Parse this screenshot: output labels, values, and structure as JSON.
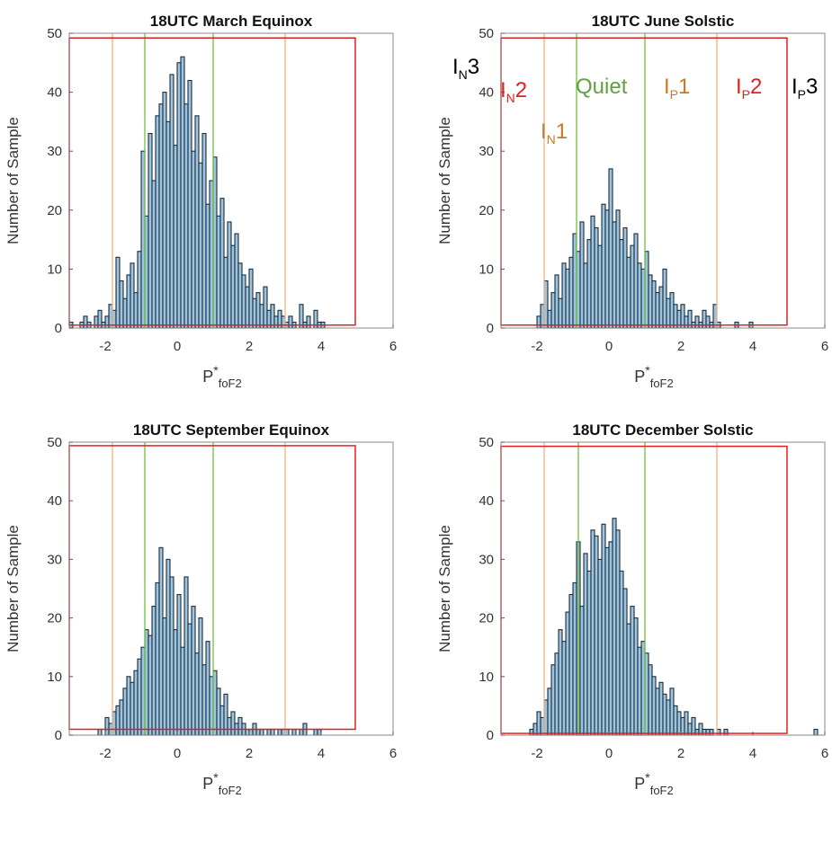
{
  "chart_data": [
    {
      "type": "histogram",
      "title": "18UTC March Equinox",
      "ylabel": "Number of Sample",
      "xlabel": {
        "text": "P",
        "sup": "*",
        "sub": "foF2"
      },
      "bins": [
        -3.0,
        -2.9,
        -2.8,
        -2.7,
        -2.6,
        -2.5,
        -2.4,
        -2.3,
        -2.2,
        -2.1,
        -2.0,
        -1.9,
        -1.8,
        -1.7,
        -1.6,
        -1.5,
        -1.4,
        -1.3,
        -1.2,
        -1.1,
        -1.0,
        -0.9,
        -0.8,
        -0.7,
        -0.6,
        -0.5,
        -0.4,
        -0.3,
        -0.2,
        -0.1,
        0.0,
        0.1,
        0.2,
        0.3,
        0.4,
        0.5,
        0.6,
        0.7,
        0.8,
        0.9,
        1.0,
        1.1,
        1.2,
        1.3,
        1.4,
        1.5,
        1.6,
        1.7,
        1.8,
        1.9,
        2.0,
        2.1,
        2.2,
        2.3,
        2.4,
        2.5,
        2.6,
        2.7,
        2.8,
        2.9,
        3.0,
        3.1,
        3.2,
        3.3,
        3.4,
        3.5,
        3.6,
        3.7,
        3.8,
        3.9,
        4.0,
        4.1,
        4.2,
        4.3,
        4.4,
        4.5,
        4.6,
        4.7,
        4.8,
        4.9,
        5.0,
        5.1,
        5.2,
        5.3,
        5.4,
        5.5,
        5.6,
        5.7,
        5.8,
        5.9,
        6.0
      ],
      "values": [
        1,
        0,
        0,
        1,
        2,
        1,
        0,
        2,
        3,
        1,
        2,
        4,
        3,
        12,
        8,
        5,
        9,
        11,
        6,
        13,
        30,
        19,
        33,
        25,
        36,
        38,
        40,
        35,
        43,
        31,
        45,
        46,
        38,
        42,
        30,
        36,
        28,
        33,
        21,
        25,
        29,
        19,
        22,
        12,
        18,
        14,
        16,
        11,
        9,
        7,
        10,
        5,
        6,
        4,
        7,
        3,
        4,
        2,
        3,
        2,
        1,
        2,
        1,
        0,
        4,
        1,
        2,
        0,
        3,
        1,
        1,
        0,
        0,
        0,
        0,
        0,
        0,
        0,
        0,
        0,
        0,
        0,
        0,
        0,
        0,
        0,
        0,
        0,
        0,
        0
      ],
      "color": "#9ec5e0",
      "xlim": [
        -3,
        6
      ],
      "ylim": [
        0,
        50
      ],
      "xticks": [
        -2,
        0,
        2,
        4,
        6
      ],
      "yticks": [
        0,
        10,
        20,
        30,
        40,
        50
      ],
      "reference_lines": [
        {
          "x": -1.8,
          "color": "#f4b183"
        },
        {
          "x": -0.9,
          "color": "#70c040"
        },
        {
          "x": 1.0,
          "color": "#70c040"
        },
        {
          "x": 3.0,
          "color": "#f4b183"
        }
      ],
      "highlight_box": {
        "x": [
          -3,
          4.95
        ],
        "y": [
          0.5,
          49.2
        ],
        "color": "#e02020"
      }
    },
    {
      "type": "histogram",
      "title": "18UTC June Solstic",
      "ylabel": "Number of Sample",
      "xlabel": {
        "text": "P",
        "sup": "*",
        "sub": "foF2"
      },
      "bins": [
        -3.0,
        -2.9,
        -2.8,
        -2.7,
        -2.6,
        -2.5,
        -2.4,
        -2.3,
        -2.2,
        -2.1,
        -2.0,
        -1.9,
        -1.8,
        -1.7,
        -1.6,
        -1.5,
        -1.4,
        -1.3,
        -1.2,
        -1.1,
        -1.0,
        -0.9,
        -0.8,
        -0.7,
        -0.6,
        -0.5,
        -0.4,
        -0.3,
        -0.2,
        -0.1,
        0.0,
        0.1,
        0.2,
        0.3,
        0.4,
        0.5,
        0.6,
        0.7,
        0.8,
        0.9,
        1.0,
        1.1,
        1.2,
        1.3,
        1.4,
        1.5,
        1.6,
        1.7,
        1.8,
        1.9,
        2.0,
        2.1,
        2.2,
        2.3,
        2.4,
        2.5,
        2.6,
        2.7,
        2.8,
        2.9,
        3.0,
        3.1,
        3.2,
        3.3,
        3.4,
        3.5,
        3.6,
        3.7,
        3.8,
        3.9,
        4.0,
        4.1,
        4.2,
        4.3,
        4.4,
        4.5,
        4.6,
        4.7,
        4.8,
        4.9,
        5.0,
        5.1,
        5.2,
        5.3,
        5.4,
        5.5,
        5.6,
        5.7,
        5.8,
        5.9,
        6.0
      ],
      "values": [
        0,
        0,
        0,
        0,
        0,
        0,
        0,
        0,
        0,
        0,
        2,
        4,
        8,
        3,
        6,
        9,
        5,
        11,
        10,
        12,
        16,
        13,
        18,
        11,
        15,
        19,
        17,
        14,
        21,
        20,
        27,
        18,
        20,
        15,
        17,
        12,
        14,
        16,
        11,
        10,
        13,
        9,
        8,
        6,
        7,
        10,
        5,
        6,
        4,
        3,
        4,
        2,
        3,
        1,
        2,
        1,
        3,
        2,
        1,
        4,
        1,
        0,
        0,
        0,
        0,
        1,
        0,
        0,
        0,
        1,
        0,
        0,
        0,
        0,
        0,
        0,
        0,
        0,
        0,
        0,
        0,
        0,
        0,
        0,
        0,
        0,
        0,
        0,
        0,
        0
      ],
      "color": "#9ec5e0",
      "xlim": [
        -3,
        6
      ],
      "ylim": [
        0,
        50
      ],
      "xticks": [
        -2,
        0,
        2,
        4,
        6
      ],
      "yticks": [
        0,
        10,
        20,
        30,
        40,
        50
      ],
      "reference_lines": [
        {
          "x": -1.8,
          "color": "#f4b183"
        },
        {
          "x": -0.9,
          "color": "#70c040"
        },
        {
          "x": 1.0,
          "color": "#70c040"
        },
        {
          "x": 3.0,
          "color": "#f4b183"
        }
      ],
      "highlight_box": {
        "x": [
          -3,
          4.95
        ],
        "y": [
          0.5,
          49.2
        ],
        "color": "#e02020"
      },
      "annotations": [
        {
          "text": "I",
          "sub": "N",
          "tail": "3",
          "color": "#000000"
        },
        {
          "text": "I",
          "sub": "N",
          "tail": "2",
          "color": "#e02020"
        },
        {
          "text": "I",
          "sub": "N",
          "tail": "1",
          "color": "#c87828"
        },
        {
          "text": "Quiet",
          "color": "#60a040"
        },
        {
          "text": "I",
          "sub": "P",
          "tail": "1",
          "color": "#c87828"
        },
        {
          "text": "I",
          "sub": "P",
          "tail": "2",
          "color": "#e02020"
        },
        {
          "text": "I",
          "sub": "P",
          "tail": "3",
          "color": "#000000"
        }
      ]
    },
    {
      "type": "histogram",
      "title": "18UTC September Equinox",
      "ylabel": "Number of Sample",
      "xlabel": {
        "text": "P",
        "sup": "*",
        "sub": "foF2"
      },
      "bins": [
        -3.0,
        -2.9,
        -2.8,
        -2.7,
        -2.6,
        -2.5,
        -2.4,
        -2.3,
        -2.2,
        -2.1,
        -2.0,
        -1.9,
        -1.8,
        -1.7,
        -1.6,
        -1.5,
        -1.4,
        -1.3,
        -1.2,
        -1.1,
        -1.0,
        -0.9,
        -0.8,
        -0.7,
        -0.6,
        -0.5,
        -0.4,
        -0.3,
        -0.2,
        -0.1,
        0.0,
        0.1,
        0.2,
        0.3,
        0.4,
        0.5,
        0.6,
        0.7,
        0.8,
        0.9,
        1.0,
        1.1,
        1.2,
        1.3,
        1.4,
        1.5,
        1.6,
        1.7,
        1.8,
        1.9,
        2.0,
        2.1,
        2.2,
        2.3,
        2.4,
        2.5,
        2.6,
        2.7,
        2.8,
        2.9,
        3.0,
        3.1,
        3.2,
        3.3,
        3.4,
        3.5,
        3.6,
        3.7,
        3.8,
        3.9,
        4.0,
        4.1,
        4.2,
        4.3,
        4.4,
        4.5,
        4.6,
        4.7,
        4.8,
        4.9,
        5.0,
        5.1,
        5.2,
        5.3,
        5.4,
        5.5,
        5.6,
        5.7,
        5.8,
        5.9,
        6.0
      ],
      "values": [
        0,
        0,
        0,
        0,
        0,
        0,
        0,
        0,
        1,
        0,
        3,
        2,
        4,
        5,
        6,
        8,
        10,
        9,
        11,
        13,
        15,
        18,
        17,
        22,
        26,
        32,
        20,
        30,
        27,
        18,
        24,
        15,
        27,
        19,
        22,
        14,
        20,
        12,
        16,
        10,
        11,
        8,
        5,
        7,
        3,
        4,
        2,
        3,
        2,
        1,
        1,
        2,
        1,
        1,
        0,
        1,
        1,
        0,
        1,
        1,
        1,
        0,
        1,
        0,
        1,
        2,
        0,
        0,
        1,
        1,
        0,
        0,
        0,
        0,
        0,
        0,
        0,
        0,
        0,
        0,
        0,
        0,
        0,
        0,
        0,
        0,
        0,
        0,
        0,
        0
      ],
      "color": "#9ec5e0",
      "xlim": [
        -3,
        6
      ],
      "ylim": [
        0,
        50
      ],
      "xticks": [
        -2,
        0,
        2,
        4,
        6
      ],
      "yticks": [
        0,
        10,
        20,
        30,
        40,
        50
      ],
      "reference_lines": [
        {
          "x": -1.8,
          "color": "#f4b183"
        },
        {
          "x": -0.9,
          "color": "#70c040"
        },
        {
          "x": 1.0,
          "color": "#70c040"
        },
        {
          "x": 3.0,
          "color": "#f4b183"
        }
      ],
      "highlight_box": {
        "x": [
          -3,
          4.95
        ],
        "y": [
          1,
          49.4
        ],
        "color": "#e02020"
      }
    },
    {
      "type": "histogram",
      "title": "18UTC December Solstic",
      "ylabel": "Number of Sample",
      "xlabel": {
        "text": "P",
        "sup": "*",
        "sub": "foF2"
      },
      "bins": [
        -3.0,
        -2.9,
        -2.8,
        -2.7,
        -2.6,
        -2.5,
        -2.4,
        -2.3,
        -2.2,
        -2.1,
        -2.0,
        -1.9,
        -1.8,
        -1.7,
        -1.6,
        -1.5,
        -1.4,
        -1.3,
        -1.2,
        -1.1,
        -1.0,
        -0.9,
        -0.8,
        -0.7,
        -0.6,
        -0.5,
        -0.4,
        -0.3,
        -0.2,
        -0.1,
        0.0,
        0.1,
        0.2,
        0.3,
        0.4,
        0.5,
        0.6,
        0.7,
        0.8,
        0.9,
        1.0,
        1.1,
        1.2,
        1.3,
        1.4,
        1.5,
        1.6,
        1.7,
        1.8,
        1.9,
        2.0,
        2.1,
        2.2,
        2.3,
        2.4,
        2.5,
        2.6,
        2.7,
        2.8,
        2.9,
        3.0,
        3.1,
        3.2,
        3.3,
        3.4,
        3.5,
        3.6,
        3.7,
        3.8,
        3.9,
        4.0,
        4.1,
        4.2,
        4.3,
        4.4,
        4.5,
        4.6,
        4.7,
        4.8,
        4.9,
        5.0,
        5.1,
        5.2,
        5.3,
        5.4,
        5.5,
        5.6,
        5.7,
        5.8,
        5.9,
        6.0
      ],
      "values": [
        0,
        0,
        0,
        0,
        0,
        0,
        0,
        0,
        1,
        2,
        4,
        3,
        6,
        8,
        12,
        14,
        18,
        16,
        21,
        24,
        26,
        33,
        22,
        31,
        28,
        35,
        34,
        30,
        36,
        32,
        33,
        37,
        35,
        28,
        25,
        19,
        22,
        20,
        15,
        16,
        14,
        12,
        10,
        8,
        9,
        7,
        6,
        8,
        5,
        4,
        3,
        4,
        2,
        3,
        1,
        2,
        1,
        1,
        1,
        0,
        1,
        0,
        1,
        0,
        0,
        0,
        0,
        0,
        0,
        0,
        0,
        0,
        0,
        0,
        0,
        0,
        0,
        0,
        0,
        0,
        0,
        0,
        0,
        0,
        0,
        0,
        0,
        1,
        0,
        0
      ],
      "color": "#9ec5e0",
      "xlim": [
        -3,
        6
      ],
      "ylim": [
        0,
        50
      ],
      "xticks": [
        -2,
        0,
        2,
        4,
        6
      ],
      "yticks": [
        0,
        10,
        20,
        30,
        40,
        50
      ],
      "reference_lines": [
        {
          "x": -1.8,
          "color": "#f4b183"
        },
        {
          "x": -0.85,
          "color": "#70c040"
        },
        {
          "x": 1.0,
          "color": "#70c040"
        },
        {
          "x": 3.0,
          "color": "#f4b183"
        }
      ],
      "highlight_box": {
        "x": [
          -3,
          4.95
        ],
        "y": [
          0.3,
          49.3
        ],
        "color": "#e02020"
      }
    }
  ]
}
